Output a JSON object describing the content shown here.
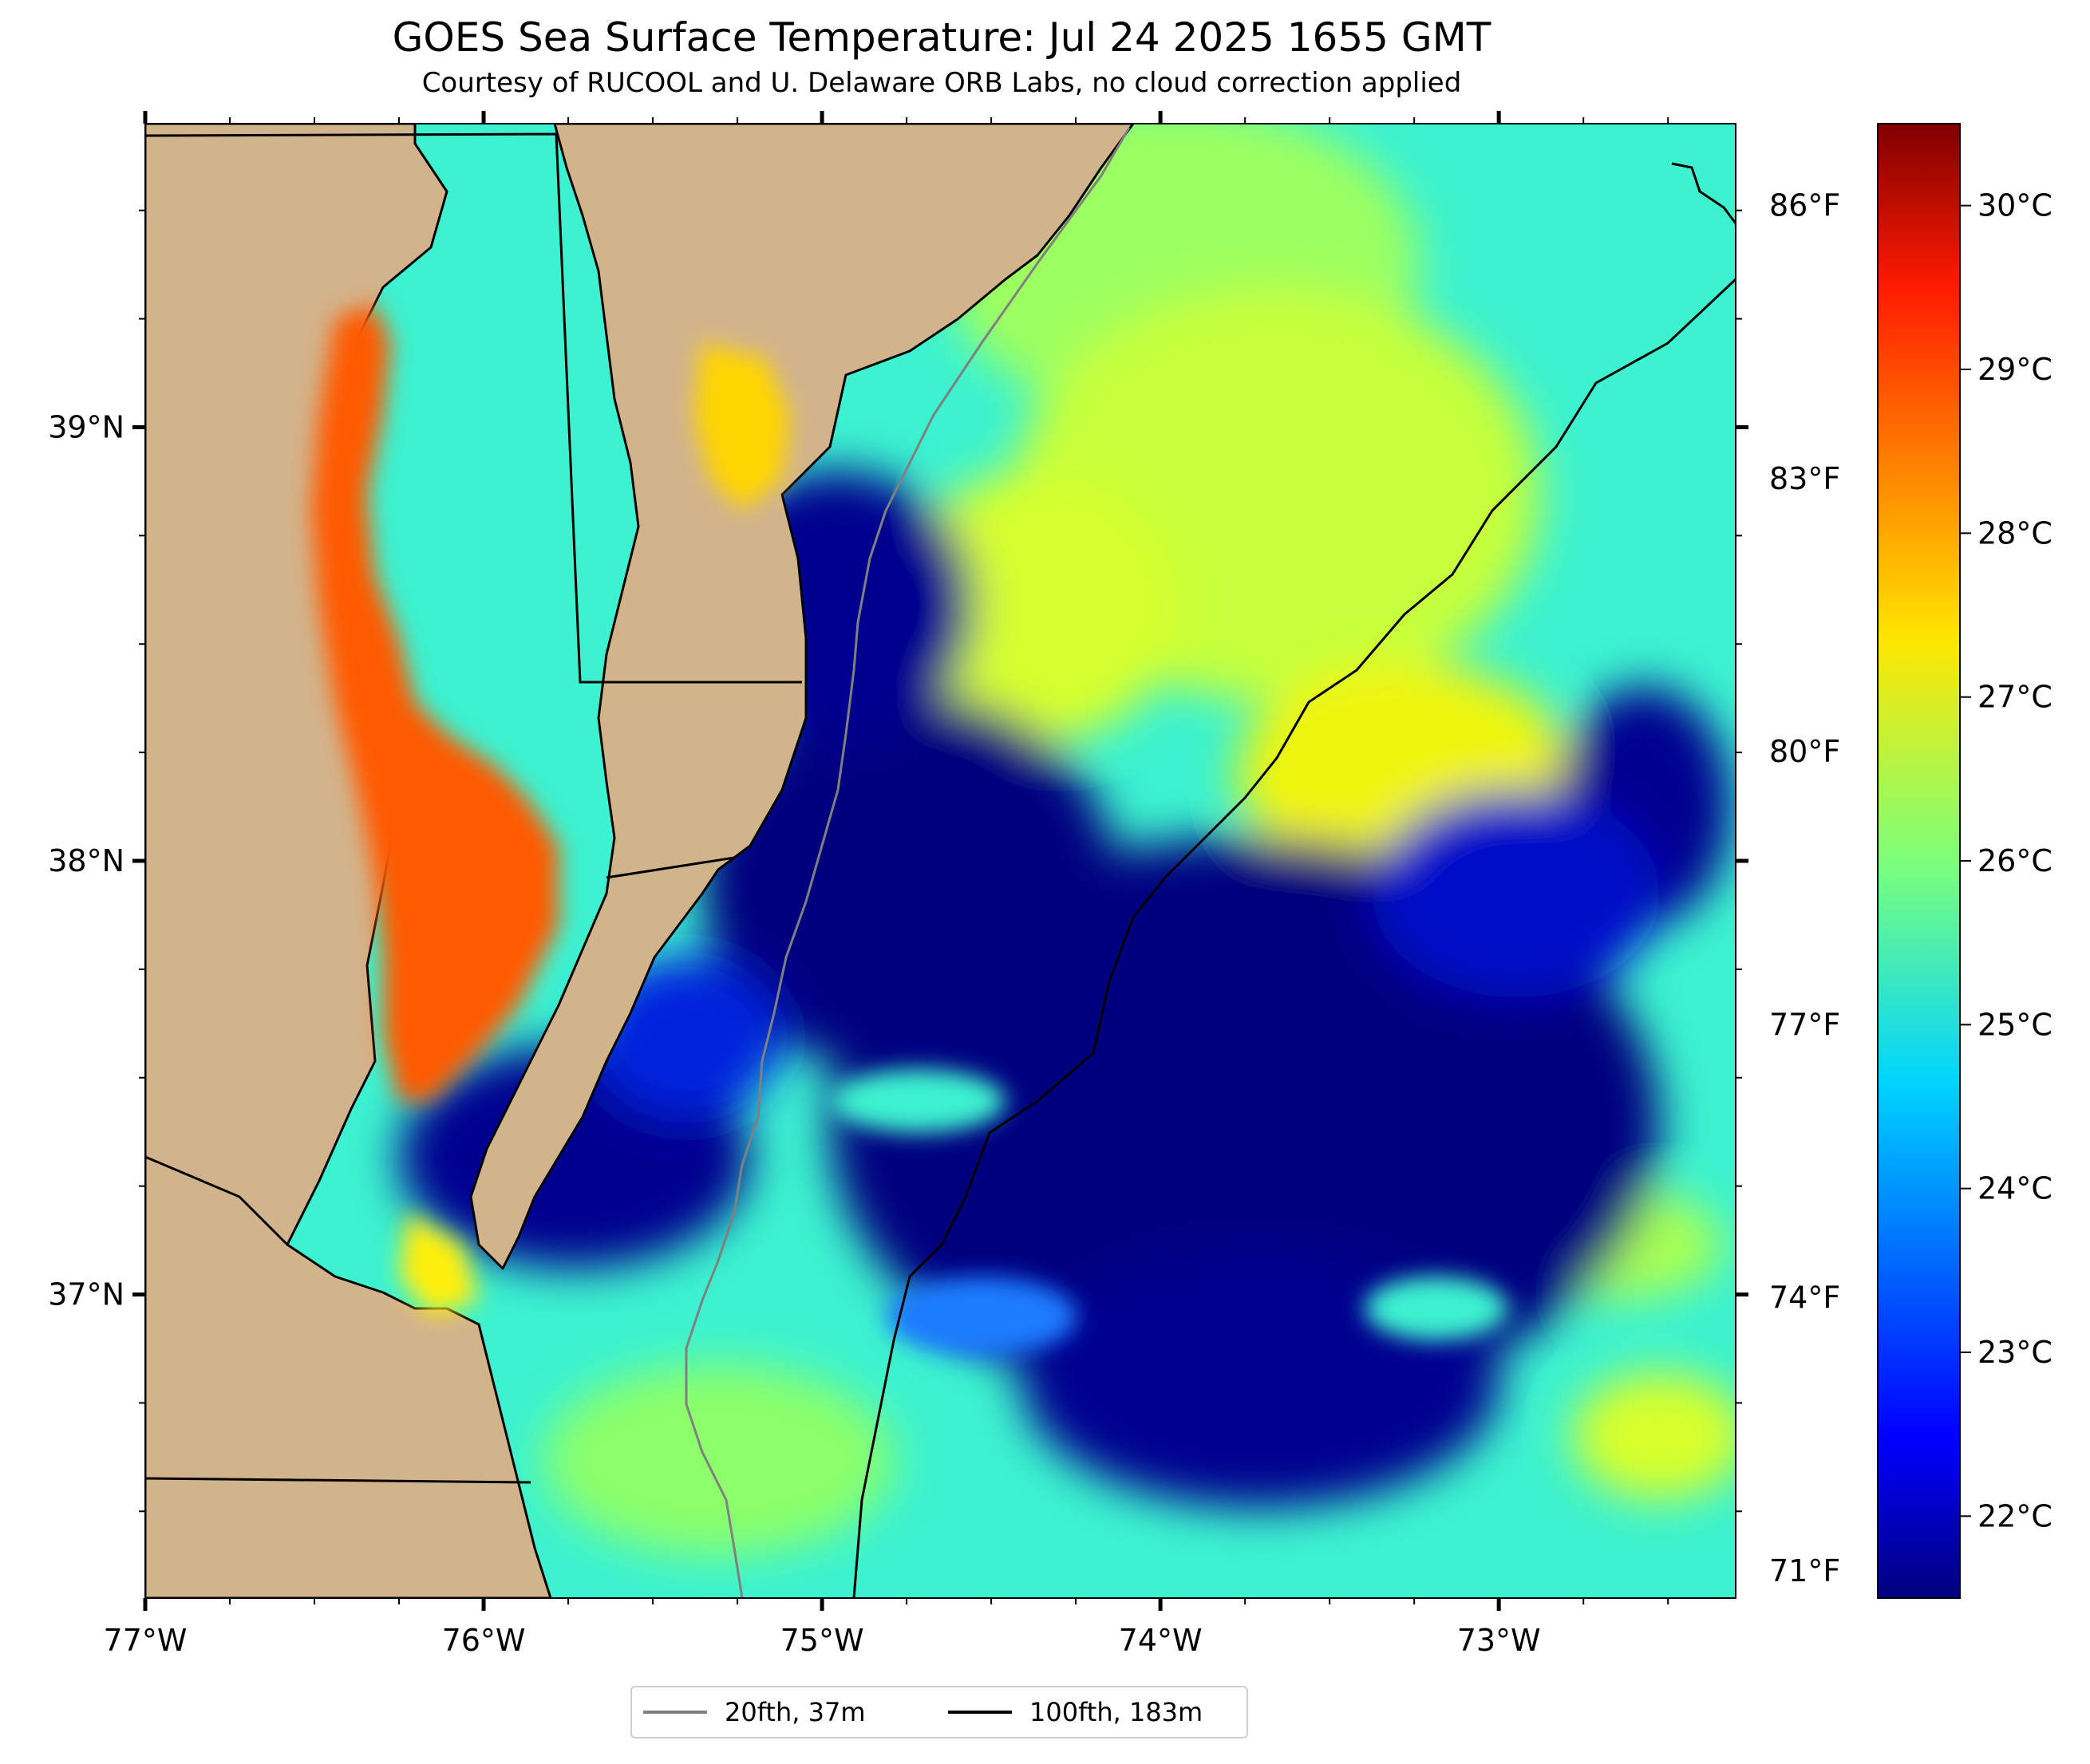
{
  "title": "GOES Sea Surface Temperature: Jul 24 2025 1655 GMT",
  "subtitle": "Courtesy of RUCOOL and U. Delaware ORB Labs, no cloud correction applied",
  "map": {
    "lon_range": [
      -77.0,
      -72.3
    ],
    "lat_range": [
      36.3,
      39.7
    ],
    "land_color": "#d2b48c",
    "lon_labels": [
      {
        "lon": -77,
        "label": "77°W"
      },
      {
        "lon": -76,
        "label": "76°W"
      },
      {
        "lon": -75,
        "label": "75°W"
      },
      {
        "lon": -74,
        "label": "74°W"
      },
      {
        "lon": -73,
        "label": "73°W"
      }
    ],
    "lat_labels": [
      {
        "lat": 39,
        "label": "39°N"
      },
      {
        "lat": 38,
        "label": "38°N"
      },
      {
        "lat": 37,
        "label": "37°N"
      }
    ]
  },
  "fahrenheit_axis": [
    {
      "value": 86,
      "label": "86°F"
    },
    {
      "value": 83,
      "label": "83°F"
    },
    {
      "value": 80,
      "label": "80°F"
    },
    {
      "value": 77,
      "label": "77°F"
    },
    {
      "value": 74,
      "label": "74°F"
    },
    {
      "value": 71,
      "label": "71°F"
    }
  ],
  "colorbar": {
    "range_c": [
      21.5,
      30.5
    ],
    "colormap": "jet",
    "ticks": [
      {
        "value": 30,
        "label": "30°C"
      },
      {
        "value": 29,
        "label": "29°C"
      },
      {
        "value": 28,
        "label": "28°C"
      },
      {
        "value": 27,
        "label": "27°C"
      },
      {
        "value": 26,
        "label": "26°C"
      },
      {
        "value": 25,
        "label": "25°C"
      },
      {
        "value": 24,
        "label": "24°C"
      },
      {
        "value": 23,
        "label": "23°C"
      },
      {
        "value": 22,
        "label": "22°C"
      }
    ]
  },
  "legend": [
    {
      "label": "20fth, 37m",
      "color": "#808080"
    },
    {
      "label": "100fth, 183m",
      "color": "#000000"
    }
  ]
}
